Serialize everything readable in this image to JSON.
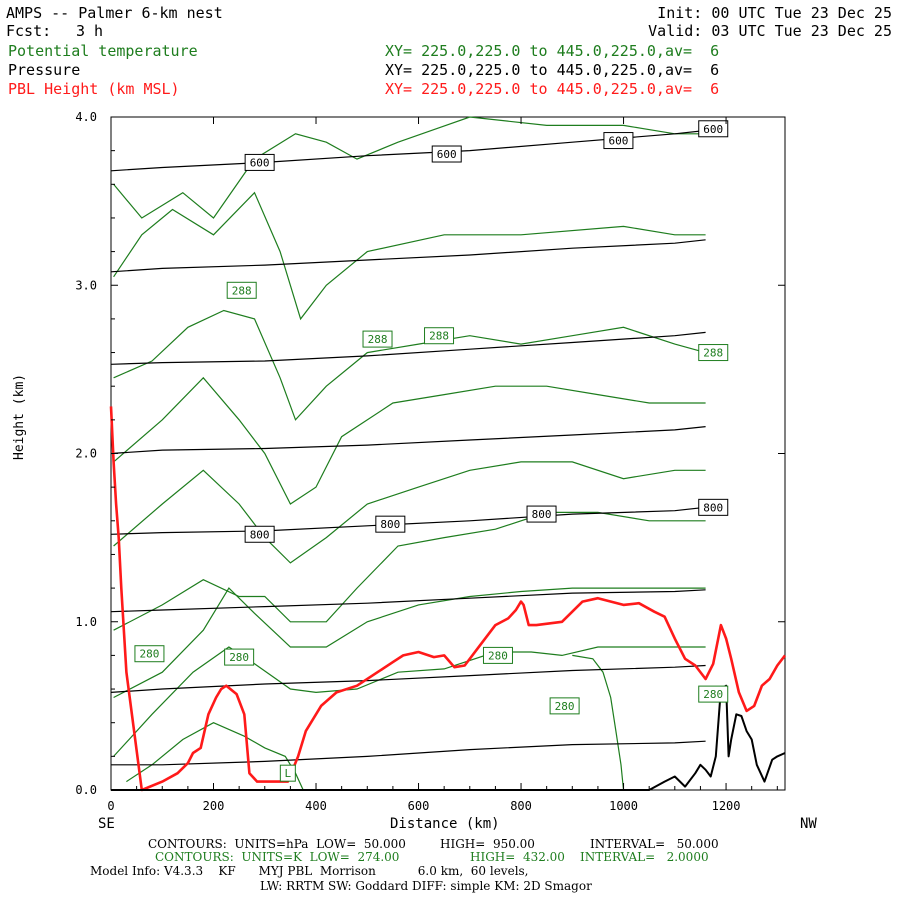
{
  "header": {
    "title": "AMPS -- Palmer 6-km nest",
    "init": "Init: 00 UTC Tue 23 Dec 25",
    "fcst_label": "Fcst:",
    "fcst_value": "3 h",
    "valid": "Valid: 03 UTC Tue 23 Dec 25",
    "fields": [
      {
        "name": "Potential temperature",
        "xy": "XY= 225.0,225.0 to 445.0,225.0,av=  6",
        "color": "#1e7d1e"
      },
      {
        "name": "Pressure",
        "xy": "XY= 225.0,225.0 to 445.0,225.0,av=  6",
        "color": "#000000"
      },
      {
        "name": "PBL Height (km MSL)",
        "xy": "XY= 225.0,225.0 to 445.0,225.0,av=  6",
        "color": "#ff1a1a"
      }
    ]
  },
  "axes": {
    "ylabel": "Height (km)",
    "xlabel": "Distance (km)",
    "left_end": "SE",
    "right_end": "NW",
    "yticks": [
      "0.0",
      "1.0",
      "2.0",
      "3.0",
      "4.0"
    ],
    "xticks": [
      "0",
      "200",
      "400",
      "600",
      "800",
      "1000",
      "1200"
    ]
  },
  "footer": {
    "line1_a": "CONTOURS:  UNITS=hPa  LOW=  50.000",
    "line1_b": "HIGH=  950.00",
    "line1_c": "INTERVAL=   50.000",
    "line2_a": "CONTOURS:  UNITS=K  LOW=  274.00",
    "line2_b": "HIGH=  432.00",
    "line2_c": "INTERVAL=   2.0000",
    "line3": "Model Info: V4.3.3    KF      MYJ PBL  Morrison           6.0 km,  60 levels,",
    "line4": "LW: RRTM SW: Goddard DIFF: simple KM: 2D Smagor"
  },
  "chart_data": {
    "type": "line",
    "xlim": [
      0,
      1315
    ],
    "ylim": [
      0,
      4
    ],
    "grid": false,
    "series": [
      {
        "name": "PBL Height (km MSL)",
        "color": "#ff1a1a",
        "x": [
          0,
          5,
          10,
          15,
          20,
          30,
          60,
          100,
          130,
          150,
          160,
          175,
          190,
          205,
          215,
          225,
          245,
          260,
          270,
          285,
          300,
          320,
          335,
          345,
          365,
          380,
          410,
          440,
          480,
          520,
          550,
          570,
          600,
          630,
          650,
          670,
          690,
          720,
          750,
          775,
          790,
          800,
          805,
          815,
          830,
          880,
          920,
          950,
          1000,
          1030,
          1060,
          1080,
          1100,
          1120,
          1140,
          1160,
          1175,
          1190,
          1200,
          1210,
          1225,
          1240,
          1255,
          1270,
          1285,
          1300,
          1315
        ],
        "y": [
          2.28,
          1.95,
          1.7,
          1.5,
          1.2,
          0.7,
          0.0,
          0.05,
          0.1,
          0.16,
          0.22,
          0.25,
          0.45,
          0.55,
          0.6,
          0.62,
          0.57,
          0.45,
          0.1,
          0.05,
          0.05,
          0.05,
          0.05,
          0.05,
          0.2,
          0.35,
          0.5,
          0.58,
          0.62,
          0.7,
          0.76,
          0.8,
          0.82,
          0.79,
          0.8,
          0.73,
          0.74,
          0.86,
          0.98,
          1.02,
          1.07,
          1.12,
          1.1,
          0.98,
          0.98,
          1.0,
          1.12,
          1.14,
          1.1,
          1.11,
          1.06,
          1.03,
          0.9,
          0.78,
          0.74,
          0.66,
          0.75,
          0.98,
          0.9,
          0.78,
          0.58,
          0.47,
          0.5,
          0.62,
          0.66,
          0.74,
          0.8
        ]
      },
      {
        "name": "Terrain",
        "color": "#000000",
        "x": [
          0,
          10,
          20,
          40,
          100,
          200,
          300,
          400,
          500,
          600,
          700,
          800,
          900,
          1000,
          1050,
          1080,
          1100,
          1120,
          1140,
          1150,
          1160,
          1170,
          1180,
          1190,
          1200,
          1205,
          1210,
          1220,
          1230,
          1240,
          1250,
          1260,
          1275,
          1290,
          1300,
          1315
        ],
        "y": [
          0,
          0,
          0,
          0,
          0,
          0,
          0,
          0,
          0,
          0,
          0,
          0,
          0,
          0,
          0.0,
          0.05,
          0.08,
          0.02,
          0.1,
          0.15,
          0.12,
          0.08,
          0.2,
          0.6,
          0.62,
          0.2,
          0.3,
          0.45,
          0.44,
          0.35,
          0.3,
          0.15,
          0.05,
          0.18,
          0.2,
          0.22
        ]
      }
    ],
    "pressure_contours_hpa": [
      {
        "label": "600",
        "x": [
          0,
          100,
          300,
          500,
          700,
          900,
          1100,
          1160
        ],
        "y": [
          3.68,
          3.7,
          3.73,
          3.77,
          3.8,
          3.85,
          3.9,
          3.92
        ]
      },
      {
        "label": "",
        "x": [
          0,
          100,
          300,
          500,
          700,
          900,
          1100,
          1160
        ],
        "y": [
          3.08,
          3.1,
          3.12,
          3.15,
          3.18,
          3.22,
          3.25,
          3.27
        ]
      },
      {
        "label": "",
        "x": [
          0,
          100,
          300,
          500,
          700,
          900,
          1100,
          1160
        ],
        "y": [
          2.53,
          2.54,
          2.55,
          2.58,
          2.62,
          2.66,
          2.7,
          2.72
        ]
      },
      {
        "label": "",
        "x": [
          0,
          100,
          300,
          500,
          700,
          900,
          1100,
          1160
        ],
        "y": [
          2.0,
          2.02,
          2.03,
          2.05,
          2.08,
          2.11,
          2.14,
          2.16
        ]
      },
      {
        "label": "800",
        "x": [
          0,
          100,
          300,
          500,
          700,
          900,
          1100,
          1160
        ],
        "y": [
          1.52,
          1.53,
          1.54,
          1.57,
          1.6,
          1.64,
          1.66,
          1.68
        ]
      },
      {
        "label": "",
        "x": [
          0,
          100,
          300,
          500,
          700,
          900,
          1100,
          1160
        ],
        "y": [
          1.06,
          1.07,
          1.09,
          1.11,
          1.14,
          1.17,
          1.18,
          1.19
        ]
      },
      {
        "label": "",
        "x": [
          0,
          100,
          300,
          500,
          700,
          900,
          1100,
          1160
        ],
        "y": [
          0.58,
          0.6,
          0.63,
          0.65,
          0.68,
          0.71,
          0.73,
          0.74
        ]
      },
      {
        "label": "",
        "x": [
          0,
          100,
          300,
          500,
          700,
          900,
          1100,
          1160
        ],
        "y": [
          0.15,
          0.15,
          0.17,
          0.2,
          0.24,
          0.27,
          0.28,
          0.29
        ]
      }
    ],
    "pressure_labels": [
      {
        "text": "600",
        "x": 290,
        "y": 3.73
      },
      {
        "text": "600",
        "x": 655,
        "y": 3.78
      },
      {
        "text": "600",
        "x": 990,
        "y": 3.86
      },
      {
        "text": "600",
        "x": 1175,
        "y": 3.93
      },
      {
        "text": "800",
        "x": 290,
        "y": 1.52
      },
      {
        "text": "800",
        "x": 545,
        "y": 1.58
      },
      {
        "text": "800",
        "x": 840,
        "y": 1.64
      },
      {
        "text": "800",
        "x": 1175,
        "y": 1.68
      }
    ],
    "theta_contours_k": [
      {
        "x": [
          5,
          60,
          140,
          200,
          280,
          360,
          420,
          480,
          560,
          700,
          850,
          1000,
          1100,
          1160
        ],
        "y": [
          3.6,
          3.4,
          3.55,
          3.4,
          3.75,
          3.9,
          3.85,
          3.75,
          3.85,
          4.0,
          3.95,
          3.95,
          3.9,
          3.9
        ]
      },
      {
        "x": [
          5,
          60,
          120,
          200,
          280,
          330,
          370,
          420,
          500,
          650,
          800,
          1000,
          1100,
          1160
        ],
        "y": [
          3.05,
          3.3,
          3.45,
          3.3,
          3.55,
          3.2,
          2.8,
          3.0,
          3.2,
          3.3,
          3.3,
          3.35,
          3.3,
          3.3
        ]
      },
      {
        "x": [
          5,
          80,
          150,
          220,
          280,
          330,
          360,
          420,
          500,
          600,
          700,
          800,
          900,
          1000,
          1100,
          1160
        ],
        "y": [
          2.45,
          2.55,
          2.75,
          2.85,
          2.8,
          2.45,
          2.2,
          2.4,
          2.6,
          2.65,
          2.7,
          2.65,
          2.7,
          2.75,
          2.65,
          2.6
        ]
      },
      {
        "x": [
          5,
          100,
          180,
          250,
          300,
          350,
          400,
          450,
          550,
          650,
          750,
          850,
          950,
          1050,
          1160
        ],
        "y": [
          1.95,
          2.2,
          2.45,
          2.2,
          2.0,
          1.7,
          1.8,
          2.1,
          2.3,
          2.35,
          2.4,
          2.4,
          2.35,
          2.3,
          2.3
        ]
      },
      {
        "x": [
          5,
          100,
          180,
          250,
          300,
          350,
          420,
          500,
          600,
          700,
          800,
          900,
          1000,
          1100,
          1160
        ],
        "y": [
          1.45,
          1.7,
          1.9,
          1.7,
          1.5,
          1.35,
          1.5,
          1.7,
          1.8,
          1.9,
          1.95,
          1.95,
          1.85,
          1.9,
          1.9
        ]
      },
      {
        "x": [
          5,
          100,
          180,
          250,
          300,
          350,
          420,
          480,
          560,
          650,
          750,
          850,
          950,
          1050,
          1160
        ],
        "y": [
          0.95,
          1.1,
          1.25,
          1.15,
          1.15,
          1.0,
          1.0,
          1.2,
          1.45,
          1.5,
          1.55,
          1.65,
          1.65,
          1.6,
          1.6
        ]
      },
      {
        "x": [
          5,
          100,
          180,
          230,
          280,
          350,
          420,
          500,
          600,
          700,
          800,
          900,
          1000,
          1100,
          1160
        ],
        "y": [
          0.55,
          0.7,
          0.95,
          1.2,
          1.05,
          0.85,
          0.85,
          1.0,
          1.1,
          1.15,
          1.18,
          1.2,
          1.2,
          1.2,
          1.2
        ]
      },
      {
        "x": [
          5,
          80,
          160,
          230,
          280,
          350,
          400,
          480,
          560,
          650,
          750,
          820,
          880,
          950,
          1050,
          1160
        ],
        "y": [
          0.2,
          0.45,
          0.7,
          0.85,
          0.75,
          0.6,
          0.58,
          0.6,
          0.7,
          0.72,
          0.82,
          0.82,
          0.8,
          0.85,
          0.85,
          0.85
        ]
      },
      {
        "x": [
          30,
          80,
          140,
          200,
          260,
          300,
          340,
          360,
          375
        ],
        "y": [
          0.05,
          0.15,
          0.3,
          0.4,
          0.32,
          0.25,
          0.2,
          0.1,
          0.0
        ]
      },
      {
        "x": [
          900,
          940,
          960,
          975,
          985,
          995,
          1000
        ],
        "y": [
          0.8,
          0.78,
          0.7,
          0.55,
          0.35,
          0.15,
          0.0
        ]
      }
    ],
    "theta_labels": [
      {
        "text": "288",
        "x": 255,
        "y": 2.97
      },
      {
        "text": "288",
        "x": 520,
        "y": 2.68
      },
      {
        "text": "288",
        "x": 640,
        "y": 2.7
      },
      {
        "text": "288",
        "x": 1175,
        "y": 2.6
      },
      {
        "text": "280",
        "x": 75,
        "y": 0.81
      },
      {
        "text": "280",
        "x": 250,
        "y": 0.79
      },
      {
        "text": "280",
        "x": 755,
        "y": 0.8
      },
      {
        "text": "280",
        "x": 885,
        "y": 0.5
      },
      {
        "text": "280",
        "x": 1175,
        "y": 0.57
      },
      {
        "text": "L",
        "x": 345,
        "y": 0.1
      }
    ]
  }
}
